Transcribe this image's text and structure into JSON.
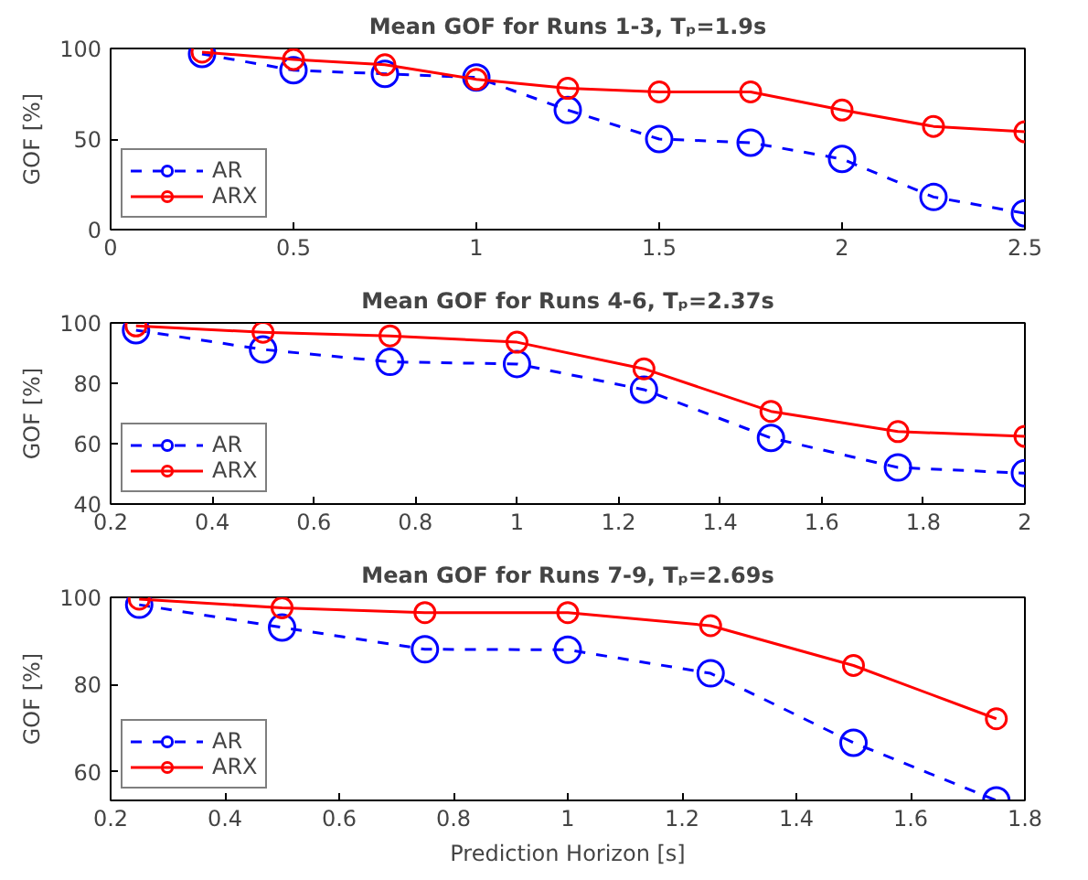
{
  "chart_data": [
    {
      "type": "line",
      "title": "Mean GOF for Runs 1-3, Tₚ=1.9s",
      "ylabel": "GOF [%]",
      "x": [
        0.25,
        0.5,
        0.75,
        1,
        1.25,
        1.5,
        1.75,
        2,
        2.25,
        2.5
      ],
      "xlim": [
        0,
        2.5
      ],
      "xticks": [
        0,
        0.5,
        1,
        1.5,
        2,
        2.5
      ],
      "ylim": [
        0,
        100
      ],
      "yticks": [
        0,
        50,
        100
      ],
      "grid": false,
      "legend": "bottom left",
      "marker": "circle",
      "tick_labels": true,
      "series": [
        {
          "name": "AR",
          "color": "#0000ff",
          "line_style": "dashed",
          "values": [
            97,
            88,
            86,
            84,
            66,
            50,
            48,
            39,
            18,
            9
          ]
        },
        {
          "name": "ARX",
          "color": "#ff0000",
          "line_style": "solid",
          "values": [
            98,
            94,
            91,
            83,
            78,
            76,
            76,
            66,
            57,
            54
          ]
        }
      ]
    },
    {
      "type": "line",
      "title": "Mean GOF for Runs 4-6, Tₚ=2.37s",
      "ylabel": "GOF [%]",
      "x": [
        0.25,
        0.5,
        0.75,
        1,
        1.25,
        1.5,
        1.75,
        2
      ],
      "xlim": [
        0.2,
        2
      ],
      "xticks": [
        0.2,
        0.4,
        0.6,
        0.8,
        1,
        1.2,
        1.4,
        1.6,
        1.8,
        2
      ],
      "ylim": [
        40,
        100
      ],
      "yticks": [
        40,
        60,
        80,
        100
      ],
      "grid": false,
      "legend": "bottom left",
      "marker": "circle",
      "series": [
        {
          "name": "AR",
          "color": "#0000ff",
          "line_style": "dashed",
          "values": [
            97.6,
            91.2,
            87.1,
            86.4,
            77.9,
            61.9,
            52.1,
            50.2
          ]
        },
        {
          "name": "ARX",
          "color": "#ff0000",
          "line_style": "solid",
          "values": [
            99,
            96.9,
            95.7,
            93.6,
            84.8,
            70.7,
            64,
            62.4
          ]
        }
      ]
    },
    {
      "type": "line",
      "title": "Mean GOF for Runs 7-9, Tₚ=2.69s",
      "xlabel": "Prediction Horizon [s]",
      "ylabel": "GOF [%]",
      "x": [
        0.25,
        0.5,
        0.75,
        1,
        1.25,
        1.5,
        1.75
      ],
      "xlim": [
        0.2,
        1.8
      ],
      "xticks": [
        0.2,
        0.4,
        0.6,
        0.8,
        1,
        1.2,
        1.4,
        1.6,
        1.8
      ],
      "ylim": [
        53.5,
        100
      ],
      "yticks": [
        60,
        80,
        100
      ],
      "grid": false,
      "legend": "bottom left",
      "marker": "circle",
      "series": [
        {
          "name": "AR",
          "color": "#0000ff",
          "line_style": "dashed",
          "values": [
            98.3,
            93.1,
            88.1,
            88,
            82.6,
            66.7,
            53.5
          ]
        },
        {
          "name": "ARX",
          "color": "#ff0000",
          "line_style": "solid",
          "values": [
            99.6,
            97.6,
            96.5,
            96.5,
            93.5,
            84.4,
            72.2
          ]
        }
      ]
    }
  ]
}
